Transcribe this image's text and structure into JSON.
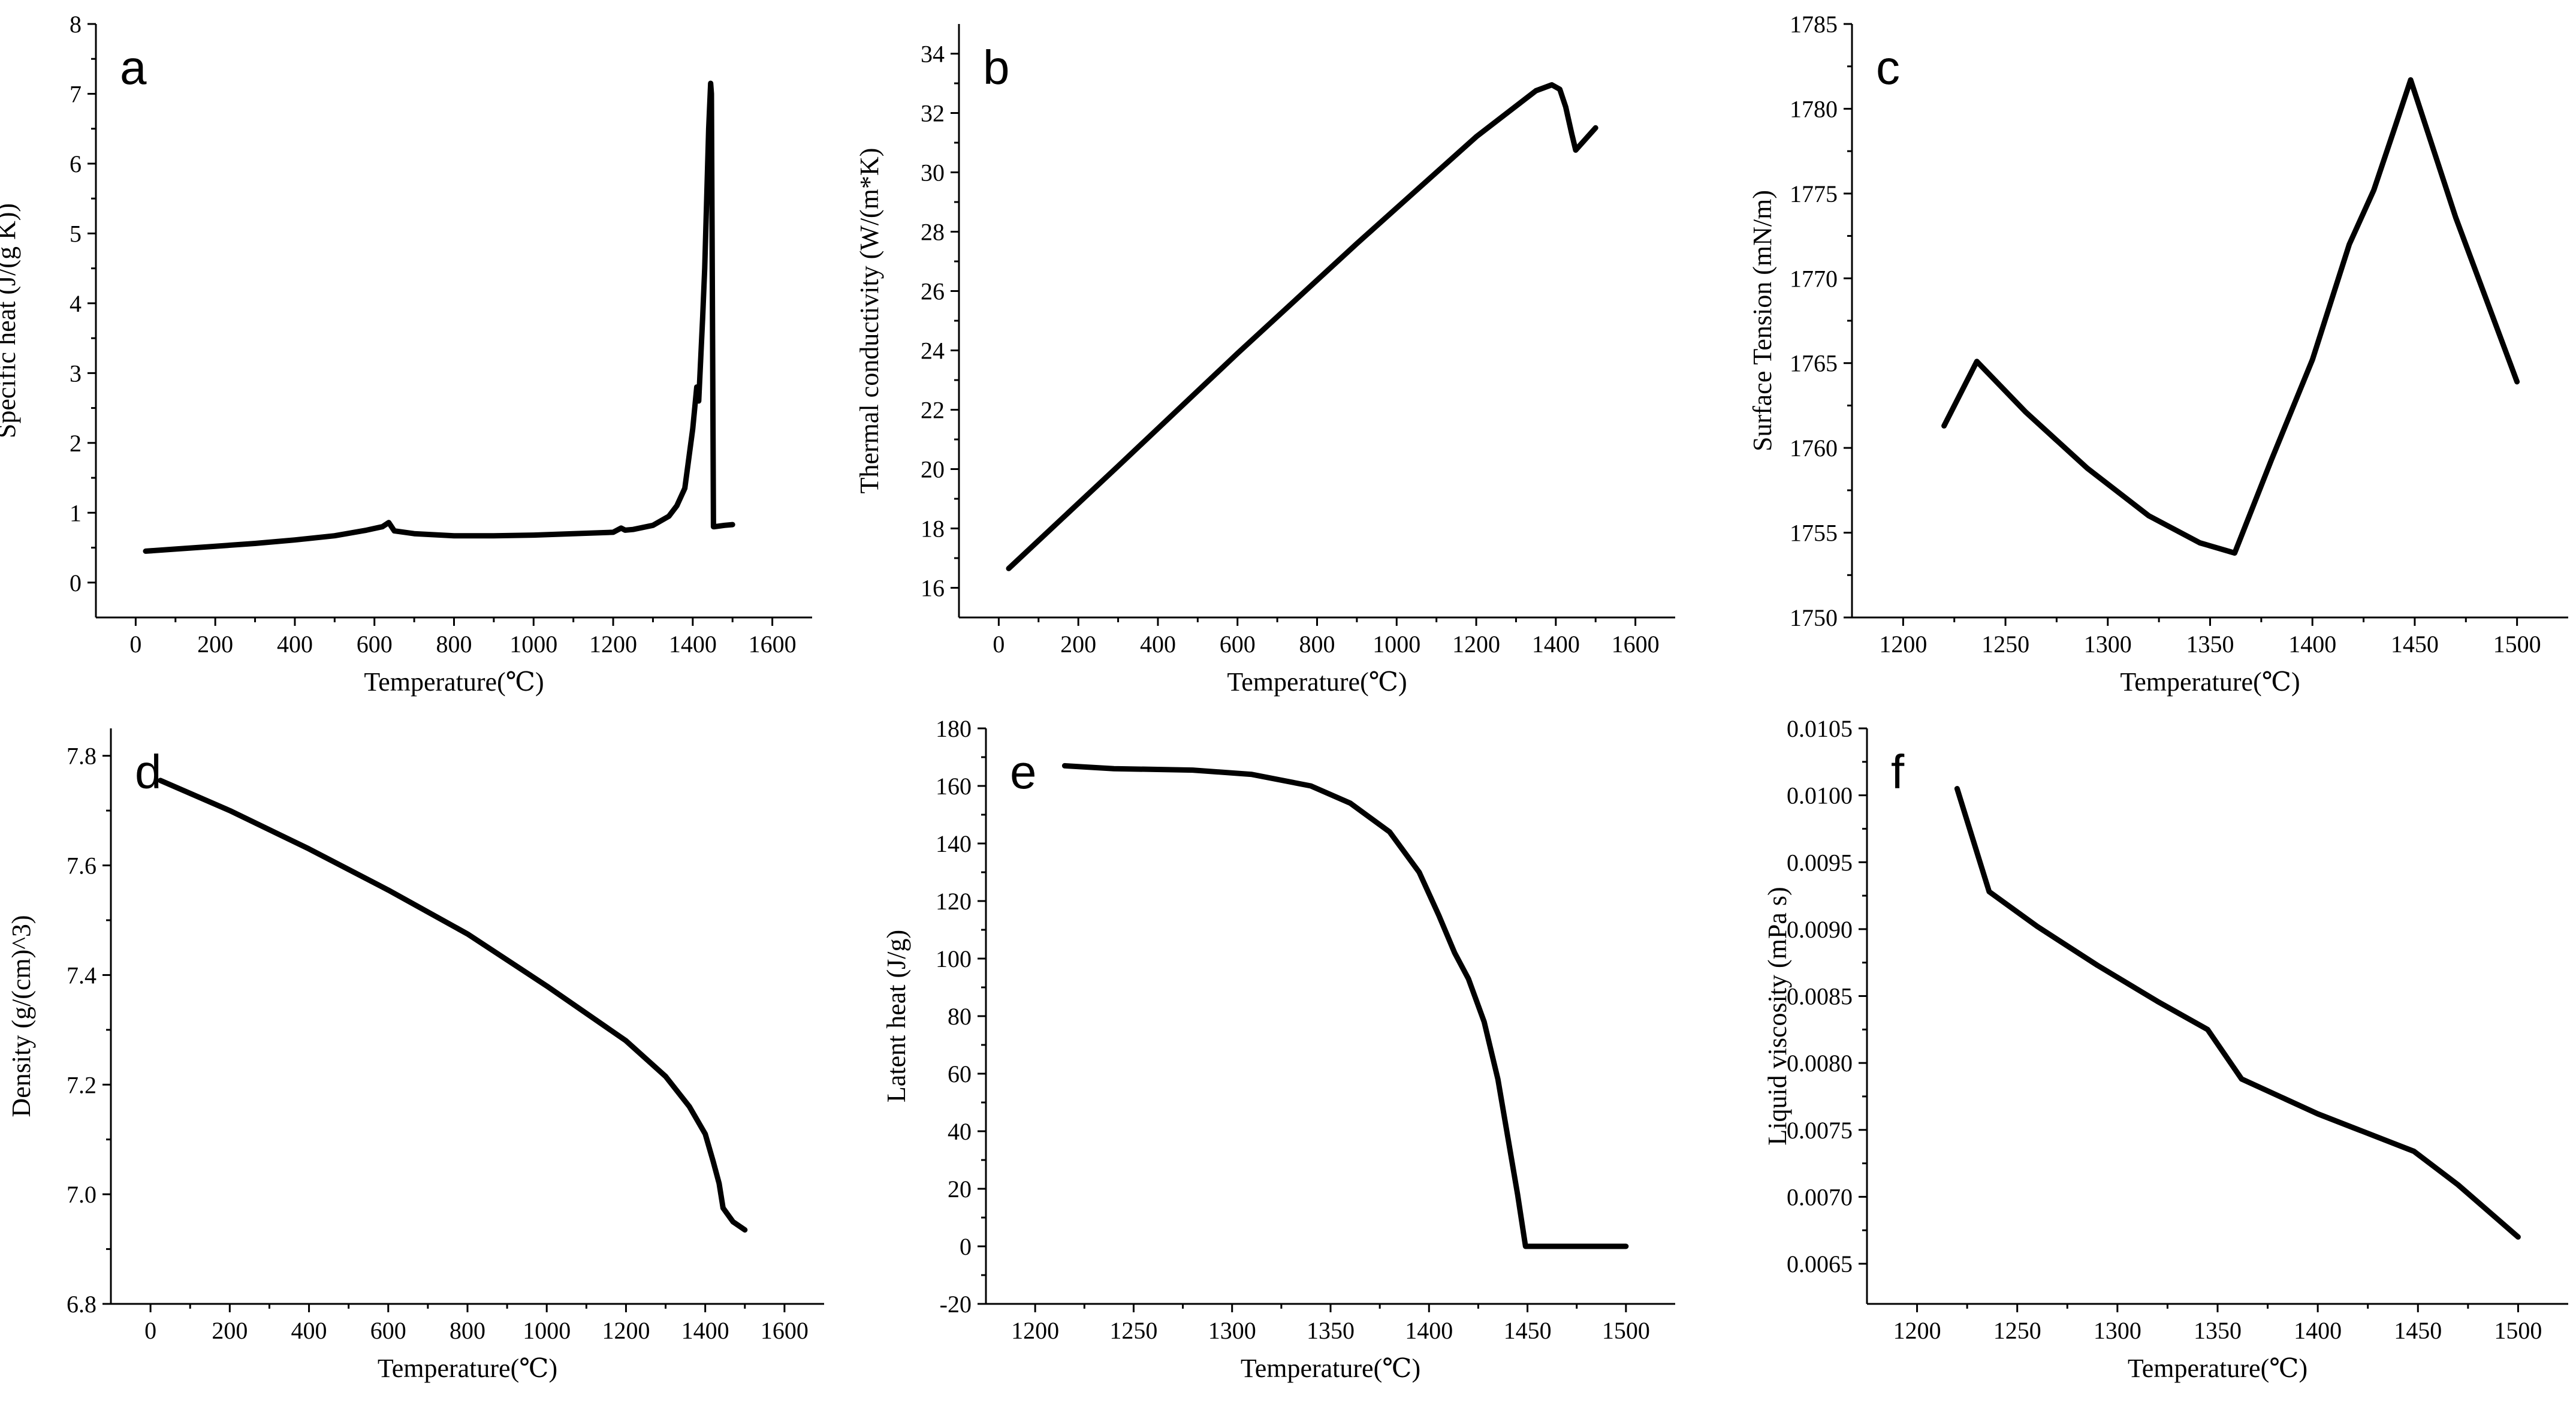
{
  "chart_data": [
    {
      "type": "line",
      "panel_label": "a",
      "xlabel": "Temperature(℃)",
      "ylabel": "Specific heat (J/(g K))",
      "xlim": [
        -100,
        1700
      ],
      "ylim": [
        -0.5,
        8
      ],
      "xticks": [
        0,
        200,
        400,
        600,
        800,
        1000,
        1200,
        1400,
        1600
      ],
      "xtick_labels": [
        "0",
        "200",
        "400",
        "600",
        "800",
        "1000",
        "1200",
        "1400",
        "1600"
      ],
      "yticks": [
        0,
        1,
        2,
        3,
        4,
        5,
        6,
        7,
        8
      ],
      "ytick_labels": [
        "0",
        "1",
        "2",
        "3",
        "4",
        "5",
        "6",
        "7",
        "8"
      ],
      "series": [
        {
          "name": "Specific heat",
          "x": [
            25,
            100,
            200,
            300,
            400,
            500,
            580,
            620,
            636,
            650,
            700,
            800,
            900,
            1000,
            1100,
            1200,
            1220,
            1230,
            1250,
            1300,
            1340,
            1360,
            1380,
            1400,
            1410,
            1415,
            1420,
            1425,
            1430,
            1435,
            1440,
            1445,
            1447,
            1452,
            1455,
            1480,
            1500
          ],
          "y": [
            0.45,
            0.48,
            0.52,
            0.56,
            0.61,
            0.67,
            0.75,
            0.8,
            0.86,
            0.74,
            0.7,
            0.67,
            0.67,
            0.68,
            0.7,
            0.72,
            0.78,
            0.75,
            0.76,
            0.82,
            0.95,
            1.1,
            1.35,
            2.2,
            2.8,
            2.6,
            3.2,
            3.8,
            4.5,
            5.5,
            6.5,
            7.15,
            7.0,
            0.8,
            0.8,
            0.82,
            0.83
          ]
        }
      ]
    },
    {
      "type": "line",
      "panel_label": "b",
      "xlabel": "Temperature(℃)",
      "ylabel": "Thermal conductivity (W/(m*K)",
      "xlim": [
        -100,
        1700
      ],
      "ylim": [
        15,
        35
      ],
      "xticks": [
        0,
        200,
        400,
        600,
        800,
        1000,
        1200,
        1400,
        1600
      ],
      "xtick_labels": [
        "0",
        "200",
        "400",
        "600",
        "800",
        "1000",
        "1200",
        "1400",
        "1600"
      ],
      "yticks": [
        16,
        18,
        20,
        22,
        24,
        26,
        28,
        30,
        32,
        34
      ],
      "ytick_labels": [
        "16",
        "18",
        "20",
        "22",
        "24",
        "26",
        "28",
        "30",
        "32",
        "34"
      ],
      "series": [
        {
          "name": "Thermal conductivity",
          "x": [
            25,
            300,
            600,
            900,
            1200,
            1350,
            1390,
            1410,
            1425,
            1440,
            1450,
            1470,
            1500
          ],
          "y": [
            16.65,
            20.1,
            23.9,
            27.6,
            31.2,
            32.75,
            32.95,
            32.8,
            32.2,
            31.3,
            30.75,
            31.05,
            31.5
          ]
        }
      ]
    },
    {
      "type": "line",
      "panel_label": "c",
      "xlabel": "Temperature(℃)",
      "ylabel": "Surface Tension (mN/m)",
      "xlim": [
        1175,
        1525
      ],
      "ylim": [
        1750,
        1785
      ],
      "xticks": [
        1200,
        1250,
        1300,
        1350,
        1400,
        1450,
        1500
      ],
      "xtick_labels": [
        "1200",
        "1250",
        "1300",
        "1350",
        "1400",
        "1450",
        "1500"
      ],
      "yticks": [
        1750,
        1755,
        1760,
        1765,
        1770,
        1775,
        1780,
        1785
      ],
      "ytick_labels": [
        "1750",
        "1755",
        "1760",
        "1765",
        "1770",
        "1775",
        "1780",
        "1785"
      ],
      "series": [
        {
          "name": "Surface tension",
          "x": [
            1220,
            1236,
            1260,
            1290,
            1320,
            1345,
            1362,
            1380,
            1400,
            1418,
            1430,
            1440,
            1448,
            1470,
            1500
          ],
          "y": [
            1761.3,
            1765.1,
            1762.1,
            1758.8,
            1756.0,
            1754.4,
            1753.8,
            1759.3,
            1765.2,
            1772.0,
            1775.2,
            1778.8,
            1781.7,
            1773.6,
            1763.9
          ]
        }
      ]
    },
    {
      "type": "line",
      "panel_label": "d",
      "xlabel": "Temperature(℃)",
      "ylabel": "Density (g/(cm)^3)",
      "xlim": [
        -100,
        1700
      ],
      "ylim": [
        6.8,
        7.85
      ],
      "xticks": [
        0,
        200,
        400,
        600,
        800,
        1000,
        1200,
        1400,
        1600
      ],
      "xtick_labels": [
        "0",
        "200",
        "400",
        "600",
        "800",
        "1000",
        "1200",
        "1400",
        "1600"
      ],
      "yticks": [
        6.8,
        7.0,
        7.2,
        7.4,
        7.6,
        7.8
      ],
      "ytick_labels": [
        "6.8",
        "7.0",
        "7.2",
        "7.4",
        "7.6",
        "7.8"
      ],
      "series": [
        {
          "name": "Density",
          "x": [
            25,
            200,
            400,
            600,
            800,
            1000,
            1200,
            1300,
            1360,
            1400,
            1420,
            1435,
            1445,
            1470,
            1500
          ],
          "y": [
            7.755,
            7.7,
            7.63,
            7.555,
            7.475,
            7.38,
            7.28,
            7.215,
            7.16,
            7.11,
            7.06,
            7.02,
            6.975,
            6.95,
            6.935
          ]
        }
      ]
    },
    {
      "type": "line",
      "panel_label": "e",
      "xlabel": "Temperature(℃)",
      "ylabel": "Latent heat (J/g)",
      "xlim": [
        1175,
        1525
      ],
      "ylim": [
        -20,
        180
      ],
      "xticks": [
        1200,
        1250,
        1300,
        1350,
        1400,
        1450,
        1500
      ],
      "xtick_labels": [
        "1200",
        "1250",
        "1300",
        "1350",
        "1400",
        "1450",
        "1500"
      ],
      "yticks": [
        -20,
        0,
        20,
        40,
        60,
        80,
        100,
        120,
        140,
        160,
        180
      ],
      "ytick_labels": [
        "-20",
        "0",
        "20",
        "40",
        "60",
        "80",
        "100",
        "120",
        "140",
        "160",
        "180"
      ],
      "series": [
        {
          "name": "Latent heat",
          "x": [
            1215,
            1240,
            1280,
            1310,
            1340,
            1360,
            1380,
            1395,
            1405,
            1413,
            1420,
            1428,
            1435,
            1440,
            1445,
            1449,
            1460,
            1500
          ],
          "y": [
            167,
            166,
            165.5,
            164,
            160,
            154,
            144,
            130,
            115,
            102,
            93,
            78,
            58,
            38,
            18,
            0,
            0,
            0
          ]
        }
      ]
    },
    {
      "type": "line",
      "panel_label": "f",
      "xlabel": "Temperature(℃)",
      "ylabel": "Liquid viscosity (mPa s)",
      "xlim": [
        1175,
        1525
      ],
      "ylim": [
        0.0062,
        0.0105
      ],
      "xticks": [
        1200,
        1250,
        1300,
        1350,
        1400,
        1450,
        1500
      ],
      "xtick_labels": [
        "1200",
        "1250",
        "1300",
        "1350",
        "1400",
        "1450",
        "1500"
      ],
      "yticks": [
        0.0065,
        0.007,
        0.0075,
        0.008,
        0.0085,
        0.009,
        0.0095,
        0.01,
        0.0105
      ],
      "ytick_labels": [
        "0.0065",
        "0.0070",
        "0.0075",
        "0.0080",
        "0.0085",
        "0.0090",
        "0.0095",
        "0.0100",
        "0.0105"
      ],
      "series": [
        {
          "name": "Liquid viscosity",
          "x": [
            1220,
            1236,
            1260,
            1290,
            1320,
            1345,
            1362,
            1400,
            1448,
            1470,
            1500
          ],
          "y": [
            0.01005,
            0.00928,
            0.00902,
            0.00873,
            0.00846,
            0.00825,
            0.00788,
            0.00762,
            0.00734,
            0.00709,
            0.0067
          ]
        }
      ]
    }
  ]
}
